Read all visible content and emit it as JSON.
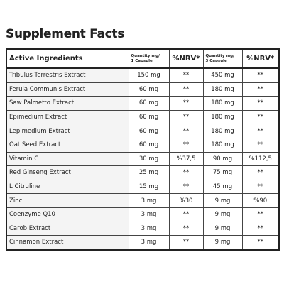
{
  "header": {
    "title": "Supplement Facts"
  },
  "table": {
    "columns": [
      "Active Ingredients",
      [
        "Quantity mg/",
        "1 Capsule"
      ],
      "%NRV*",
      [
        "Quantity mg/",
        "3 Capsule"
      ],
      "%NRV*"
    ],
    "rows": [
      [
        "Tribulus Terrestris Extract",
        "150 mg",
        "**",
        "450 mg",
        "**"
      ],
      [
        "Ferula Communis Extract",
        "60 mg",
        "**",
        "180 mg",
        "**"
      ],
      [
        "Saw Palmetto Extract",
        "60 mg",
        "**",
        "180 mg",
        "**"
      ],
      [
        "Epimedium Extract",
        "60 mg",
        "**",
        "180 mg",
        "**"
      ],
      [
        "Lepimedium Extract",
        "60 mg",
        "**",
        "180 mg",
        "**"
      ],
      [
        "Oat Seed Extract",
        "60 mg",
        "**",
        "180 mg",
        "**"
      ],
      [
        "Vitamin C",
        "30 mg",
        "%37,5",
        "90 mg",
        "%112,5"
      ],
      [
        "Red Ginseng Extract",
        "25 mg",
        "**",
        "75 mg",
        "**"
      ],
      [
        "L Citruline",
        "15 mg",
        "**",
        "45 mg",
        "**"
      ],
      [
        "Zinc",
        "3 mg",
        "%30",
        "9 mg",
        "%90"
      ],
      [
        "Coenzyme Q10",
        "3 mg",
        "**",
        "9 mg",
        "**"
      ],
      [
        "Carob Extract",
        "3 mg",
        "**",
        "9 mg",
        "**"
      ],
      [
        "Cinnamon Extract",
        "3 mg",
        "**",
        "9 mg",
        "**"
      ]
    ]
  }
}
